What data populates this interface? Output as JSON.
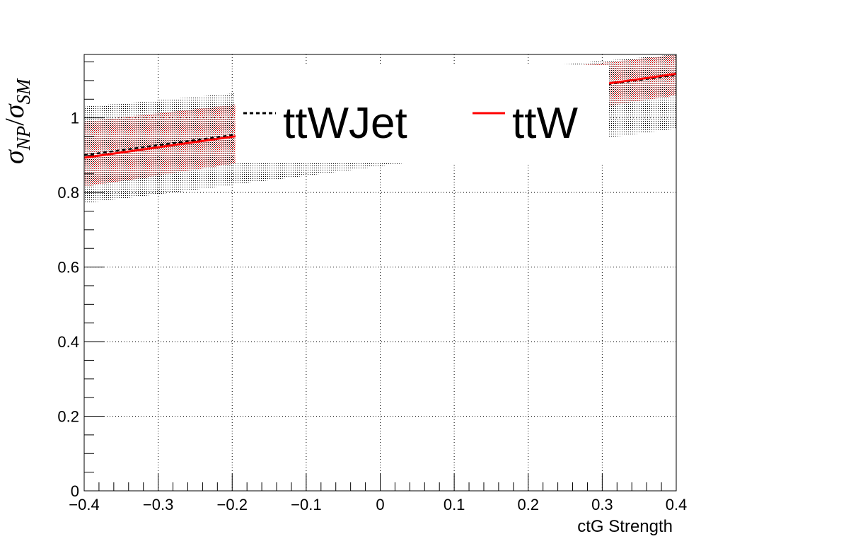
{
  "chart_data": {
    "type": "line",
    "xlabel": "ctG Strength",
    "ylabel": {
      "symbol": "σ",
      "sub1": "NP",
      "slash": "/",
      "sub2": "SM"
    },
    "xlim": [
      -0.4,
      0.4
    ],
    "ylim": [
      0,
      1.17
    ],
    "grid": true,
    "x_ticks": [
      -0.4,
      -0.3,
      -0.2,
      -0.1,
      0,
      0.1,
      0.2,
      0.3,
      0.4
    ],
    "x_tick_labels": [
      "−0.4",
      "−0.3",
      "−0.2",
      "−0.1",
      "0",
      "0.1",
      "0.2",
      "0.3",
      "0.4"
    ],
    "y_ticks": [
      0,
      0.2,
      0.4,
      0.6,
      0.8,
      1
    ],
    "y_tick_labels": [
      "0",
      "0.2",
      "0.4",
      "0.6",
      "0.8",
      "1"
    ],
    "legend_position": "top",
    "series": [
      {
        "name": "ttWJet",
        "style": "dashed",
        "color": "#000000",
        "x": [
          -0.4,
          0.4
        ],
        "y": [
          0.9,
          1.115
        ],
        "band_low": [
          0.77,
          0.97
        ],
        "band_high": [
          1.03,
          1.17
        ]
      },
      {
        "name": "ttW",
        "style": "solid",
        "color": "#ff0000",
        "x": [
          -0.4,
          0.4
        ],
        "y": [
          0.893,
          1.118
        ],
        "band_low": [
          0.815,
          1.06
        ],
        "band_high": [
          0.99,
          1.17
        ]
      }
    ]
  }
}
